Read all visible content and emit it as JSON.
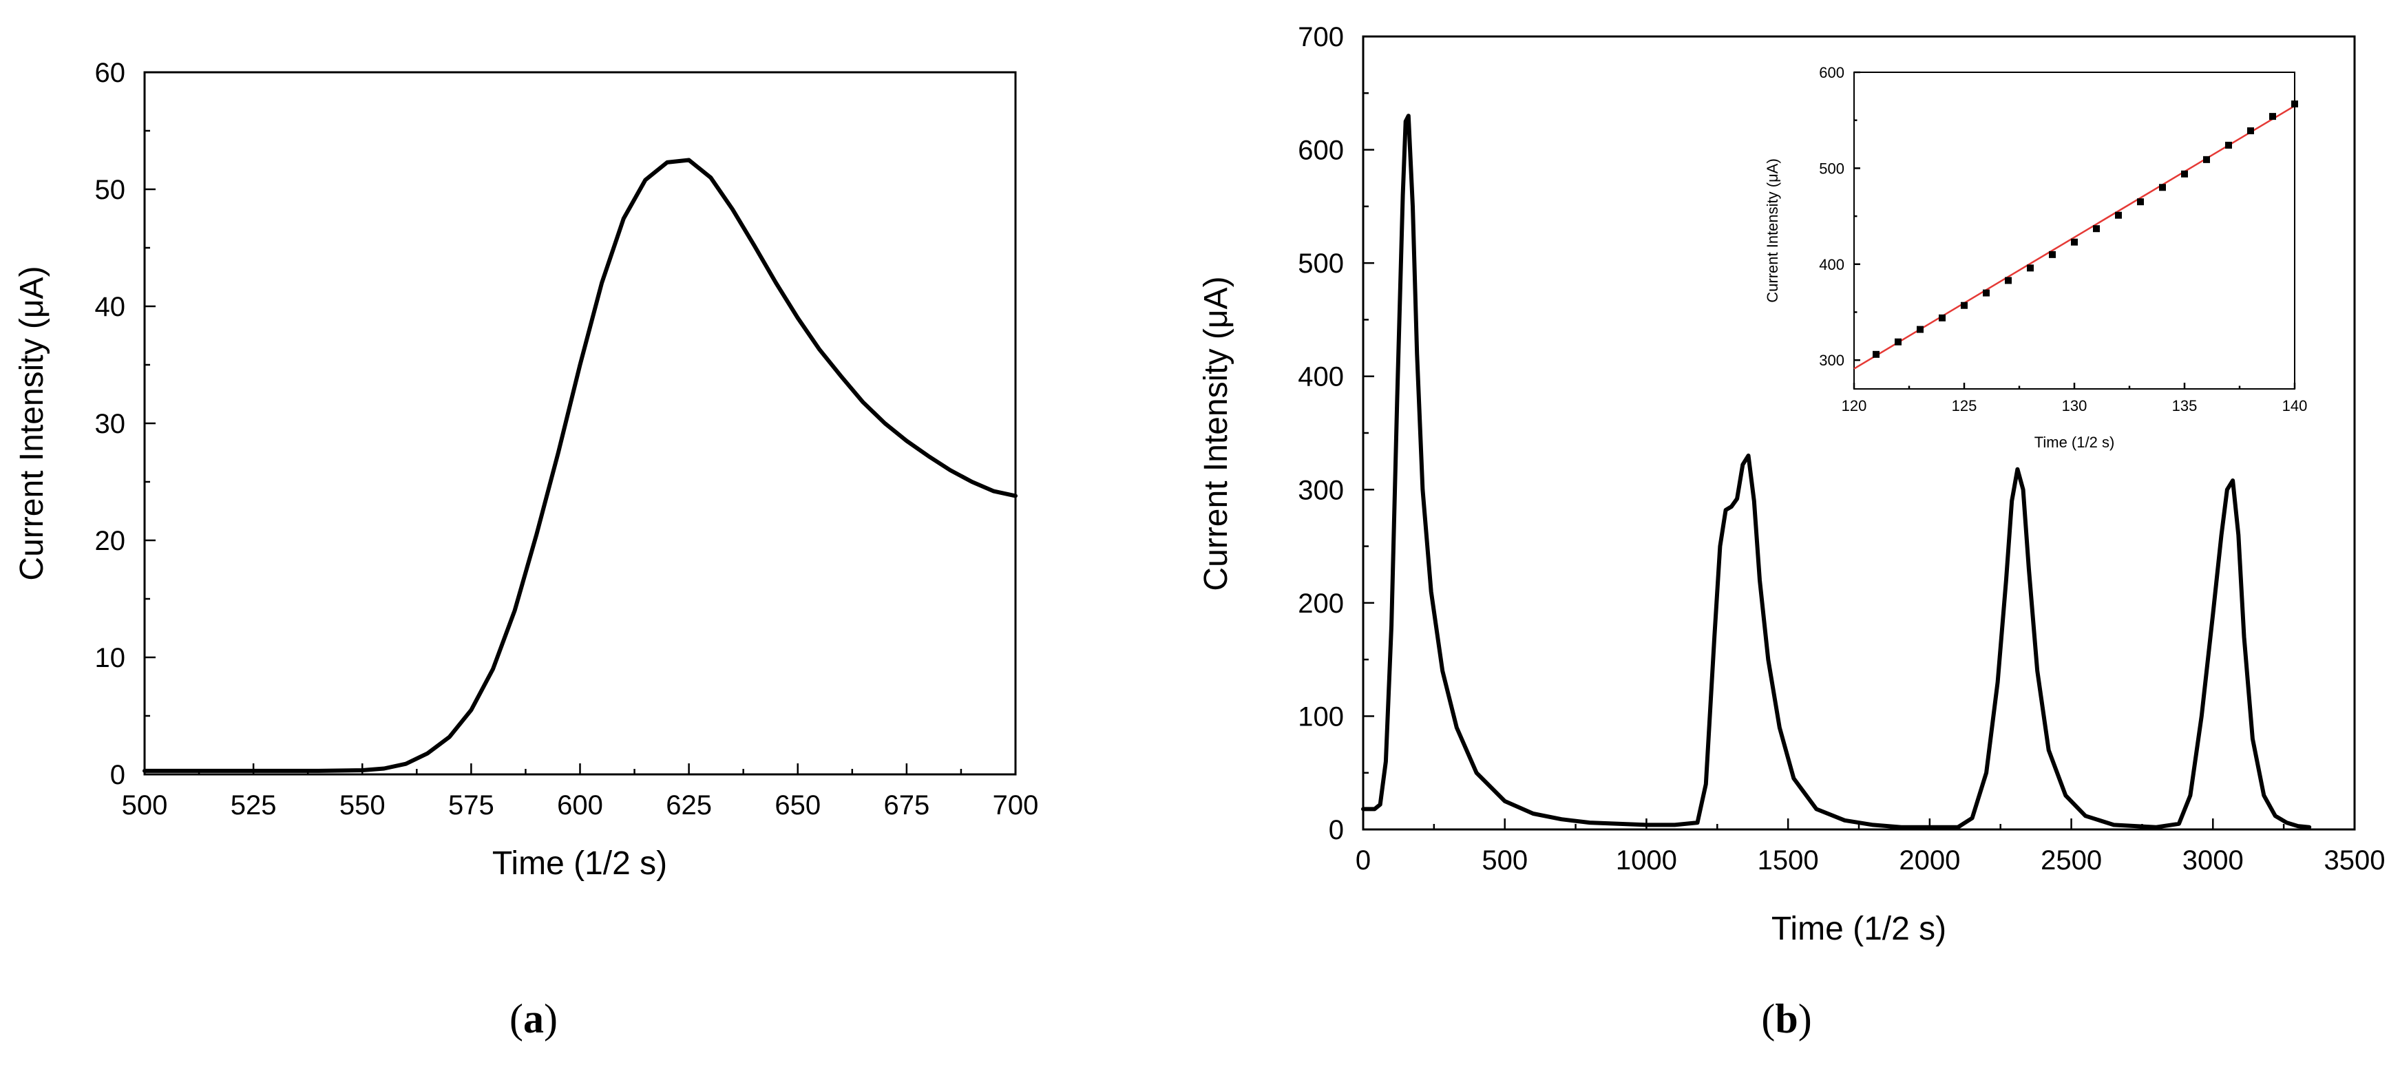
{
  "chart_data": [
    {
      "id": "a",
      "type": "line",
      "panel_label": "a",
      "xlabel": "Time (1/2 s)",
      "ylabel": "Current Intensity (μA)",
      "xlim": [
        500,
        700
      ],
      "ylim": [
        0,
        60
      ],
      "xticks": [
        500,
        525,
        550,
        575,
        600,
        625,
        650,
        675,
        700
      ],
      "yticks": [
        0,
        10,
        20,
        30,
        40,
        50,
        60
      ],
      "grid": false,
      "series": [
        {
          "x": [
            500,
            520,
            540,
            550,
            555,
            560,
            565,
            570,
            575,
            580,
            585,
            590,
            595,
            600,
            605,
            610,
            615,
            620,
            625,
            630,
            635,
            640,
            645,
            650,
            655,
            660,
            665,
            670,
            675,
            680,
            685,
            690,
            695,
            700
          ],
          "y": [
            0.3,
            0.3,
            0.3,
            0.35,
            0.5,
            0.9,
            1.8,
            3.2,
            5.5,
            9.0,
            14.0,
            20.5,
            27.5,
            35.0,
            42.0,
            47.5,
            50.8,
            52.3,
            52.5,
            51.0,
            48.3,
            45.2,
            42.0,
            39.0,
            36.3,
            34.0,
            31.8,
            30.0,
            28.5,
            27.2,
            26.0,
            25.0,
            24.2,
            23.8
          ]
        }
      ]
    },
    {
      "id": "b",
      "type": "line",
      "panel_label": "b",
      "xlabel": "Time (1/2 s)",
      "ylabel": "Current Intensity (μA)",
      "xlim": [
        0,
        3500
      ],
      "ylim": [
        0,
        700
      ],
      "xticks": [
        0,
        500,
        1000,
        1500,
        2000,
        2500,
        3000,
        3500
      ],
      "yticks": [
        0,
        100,
        200,
        300,
        400,
        500,
        600,
        700
      ],
      "grid": false,
      "series": [
        {
          "x": [
            0,
            40,
            60,
            80,
            100,
            120,
            140,
            150,
            160,
            175,
            190,
            210,
            240,
            280,
            330,
            400,
            500,
            600,
            700,
            800,
            900,
            1000,
            1100,
            1180,
            1210,
            1240,
            1260,
            1280,
            1300,
            1320,
            1340,
            1360,
            1380,
            1400,
            1430,
            1470,
            1520,
            1600,
            1700,
            1800,
            1900,
            2000,
            2100,
            2150,
            2200,
            2240,
            2270,
            2290,
            2310,
            2330,
            2350,
            2380,
            2420,
            2480,
            2550,
            2650,
            2800,
            2880,
            2920,
            2960,
            3000,
            3030,
            3050,
            3070,
            3090,
            3110,
            3140,
            3180,
            3220,
            3260,
            3300,
            3340
          ],
          "y": [
            18,
            18,
            22,
            60,
            180,
            380,
            560,
            625,
            630,
            550,
            420,
            300,
            210,
            140,
            90,
            50,
            25,
            14,
            9,
            6,
            5,
            4,
            4,
            6,
            40,
            170,
            250,
            282,
            285,
            292,
            322,
            330,
            290,
            220,
            150,
            90,
            45,
            18,
            8,
            4,
            2,
            2,
            2,
            10,
            50,
            130,
            220,
            290,
            318,
            300,
            230,
            140,
            70,
            30,
            12,
            4,
            2,
            5,
            30,
            100,
            190,
            260,
            300,
            308,
            260,
            170,
            80,
            30,
            12,
            6,
            3,
            2
          ]
        }
      ],
      "inset": {
        "type": "scatter",
        "xlabel": "Time (1/2 s)",
        "ylabel": "Current Intensity (μA)",
        "xlim": [
          120,
          140
        ],
        "ylim": [
          270,
          600
        ],
        "xticks": [
          120,
          125,
          130,
          135,
          140
        ],
        "yticks": [
          300,
          400,
          500,
          600
        ],
        "points": {
          "x": [
            121,
            122,
            123,
            124,
            125,
            126,
            127,
            128,
            129,
            130,
            131,
            132,
            133,
            134,
            135,
            136,
            137,
            138,
            139,
            140
          ],
          "y": [
            306,
            319,
            332,
            344,
            357,
            370,
            383,
            396,
            410,
            423,
            437,
            451,
            465,
            480,
            494,
            509,
            524,
            539,
            554,
            567
          ]
        },
        "fit": {
          "x": [
            120,
            140
          ],
          "y": [
            291,
            565
          ],
          "color": "#e53935"
        }
      }
    }
  ]
}
